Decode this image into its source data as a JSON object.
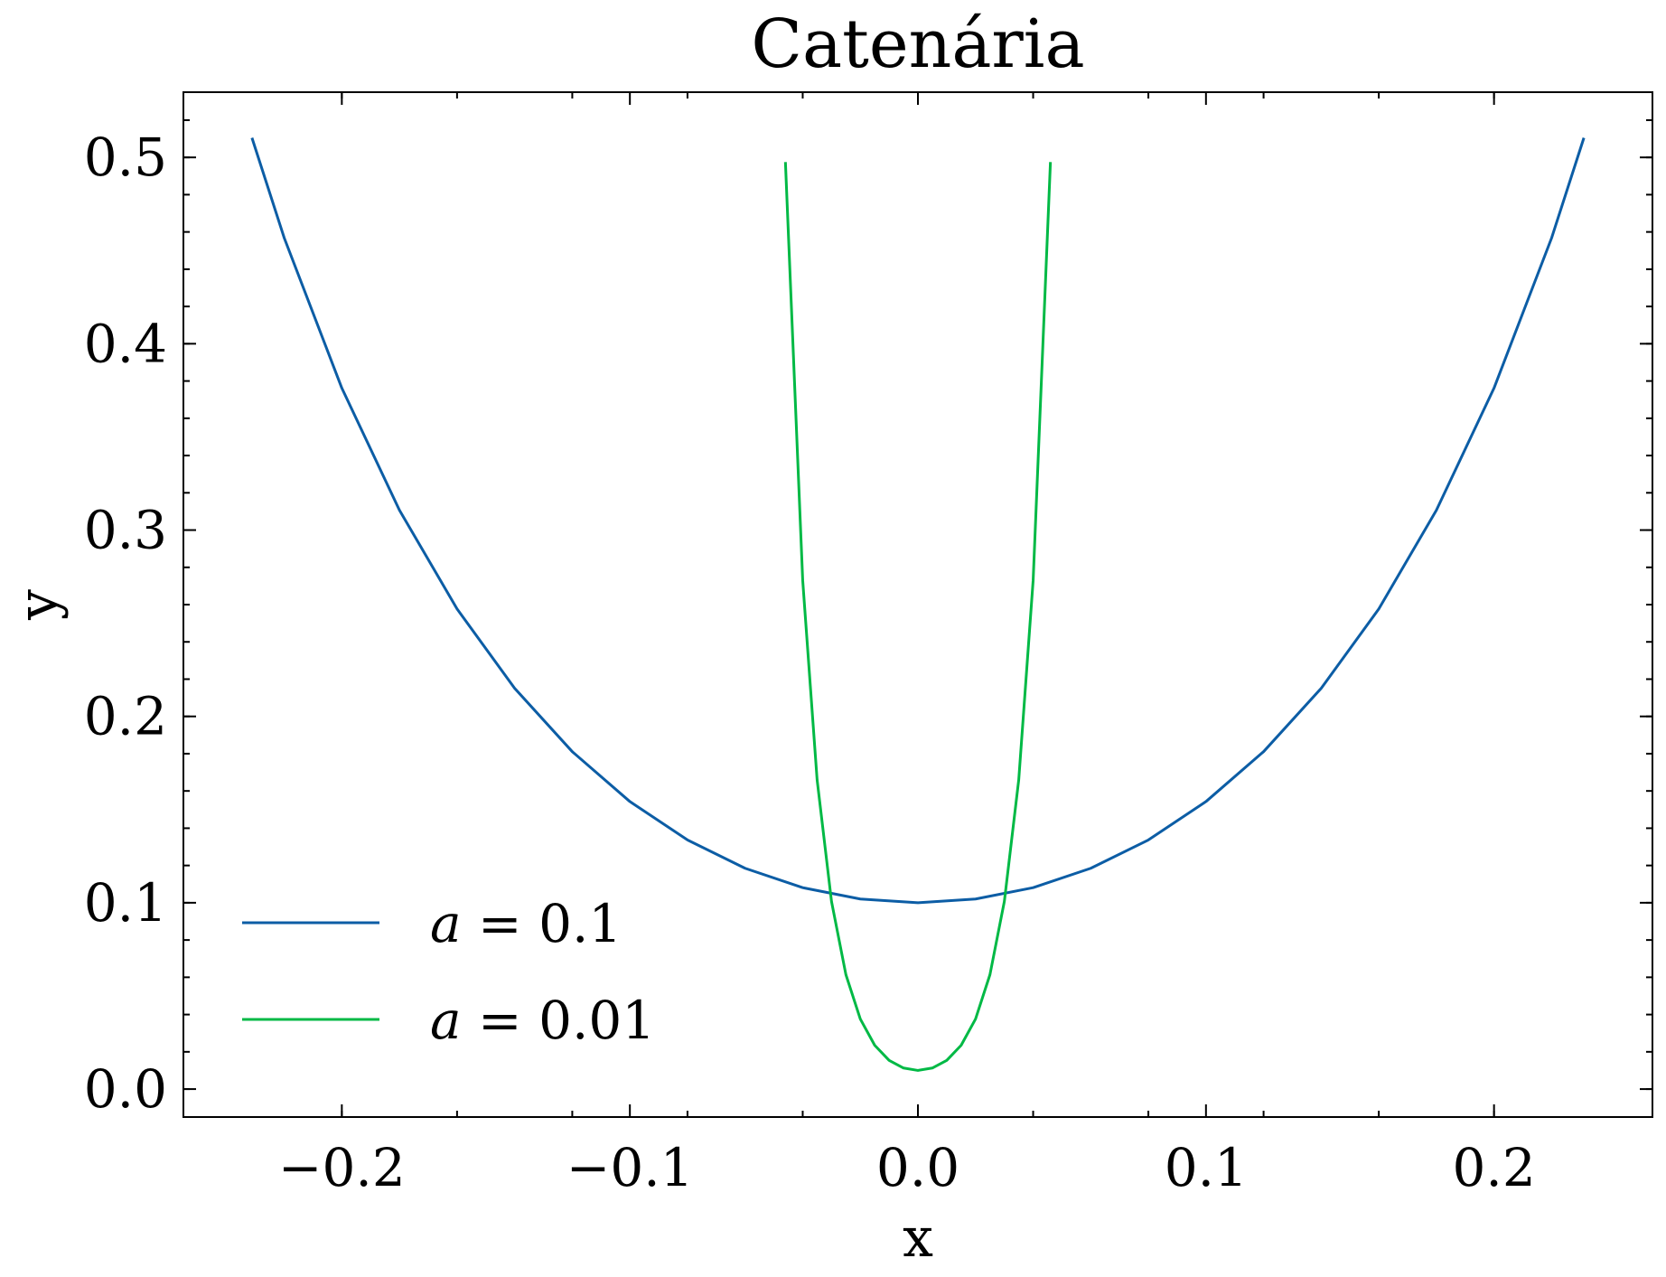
{
  "chart_data": {
    "type": "line",
    "title": "Catenária",
    "xlabel": "x",
    "ylabel": "y",
    "xlim": [
      -0.255,
      0.255
    ],
    "ylim": [
      -0.015,
      0.535
    ],
    "x_ticks": [
      -0.2,
      -0.1,
      0.0,
      0.1,
      0.2
    ],
    "x_tick_labels": [
      "−0.2",
      "−0.1",
      "0.0",
      "0.1",
      "0.2"
    ],
    "y_ticks": [
      0.0,
      0.1,
      0.2,
      0.3,
      0.4,
      0.5
    ],
    "y_tick_labels": [
      "0.0",
      "0.1",
      "0.2",
      "0.3",
      "0.4",
      "0.5"
    ],
    "grid": false,
    "legend_position": "lower-left",
    "series": [
      {
        "name": "a = 0.1",
        "color": "#0C5DA5",
        "x": [
          -0.2312,
          -0.22,
          -0.2,
          -0.18,
          -0.16,
          -0.14,
          -0.12,
          -0.1,
          -0.08,
          -0.06,
          -0.04,
          -0.02,
          0.0,
          0.02,
          0.04,
          0.06,
          0.08,
          0.1,
          0.12,
          0.14,
          0.16,
          0.18,
          0.2,
          0.22,
          0.2312
        ],
        "y": [
          0.5105,
          0.4568,
          0.3762,
          0.3107,
          0.2577,
          0.2151,
          0.1811,
          0.1543,
          0.1337,
          0.1185,
          0.1081,
          0.102,
          0.1,
          0.102,
          0.1081,
          0.1185,
          0.1337,
          0.1543,
          0.1811,
          0.2151,
          0.2577,
          0.3107,
          0.3762,
          0.4568,
          0.5105
        ]
      },
      {
        "name": "a = 0.01",
        "color": "#00B945",
        "x": [
          -0.046,
          -0.04,
          -0.035,
          -0.03,
          -0.025,
          -0.02,
          -0.015,
          -0.01,
          -0.005,
          0.0,
          0.005,
          0.01,
          0.015,
          0.02,
          0.025,
          0.03,
          0.035,
          0.04,
          0.046
        ],
        "y": [
          0.4975,
          0.273,
          0.166,
          0.1007,
          0.0614,
          0.0376,
          0.0235,
          0.0154,
          0.0113,
          0.01,
          0.0113,
          0.0154,
          0.0235,
          0.0376,
          0.0614,
          0.1007,
          0.166,
          0.273,
          0.4975
        ]
      }
    ]
  },
  "legend": {
    "items": [
      {
        "var": "a",
        "rest": " = 0.1",
        "color": "#0C5DA5"
      },
      {
        "var": "a",
        "rest": " = 0.01",
        "color": "#00B945"
      }
    ]
  }
}
